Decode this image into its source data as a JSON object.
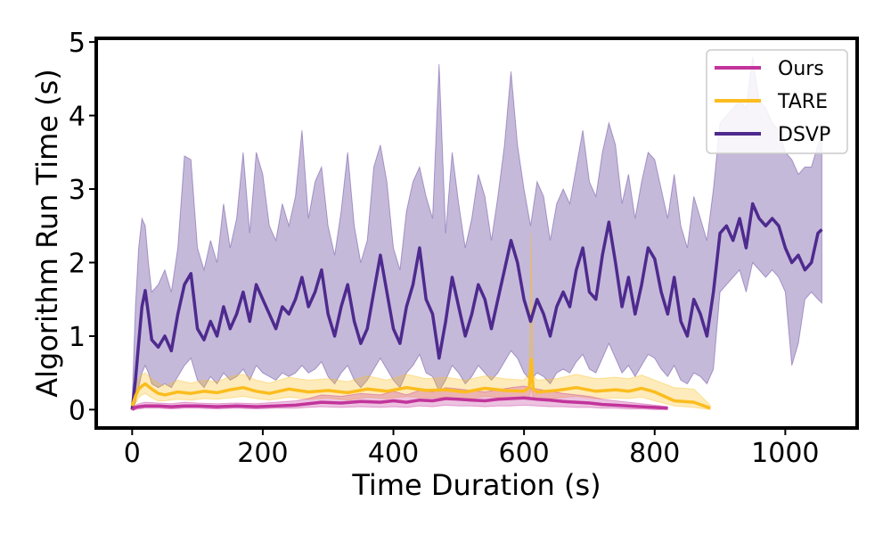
{
  "chart_data": {
    "type": "line",
    "xlabel": "Time Duration (s)",
    "ylabel": "Algorithm Run Time (s)",
    "xlim": [
      -55,
      1110
    ],
    "ylim": [
      -0.25,
      5.05
    ],
    "xticks": [
      0,
      200,
      400,
      600,
      800,
      1000
    ],
    "yticks": [
      0,
      1,
      2,
      3,
      4,
      5
    ],
    "legend_position": "top-right",
    "series": [
      {
        "name": "Ours",
        "color": "#c2349b",
        "x": [
          0,
          5,
          10,
          20,
          40,
          60,
          80,
          100,
          130,
          160,
          190,
          220,
          250,
          270,
          290,
          320,
          350,
          380,
          400,
          420,
          440,
          460,
          480,
          500,
          520,
          540,
          560,
          580,
          600,
          620,
          640,
          660,
          680,
          700,
          720,
          740,
          760,
          780,
          800,
          820
        ],
        "y": [
          0.0,
          0.03,
          0.04,
          0.05,
          0.05,
          0.04,
          0.05,
          0.05,
          0.04,
          0.05,
          0.04,
          0.05,
          0.06,
          0.08,
          0.1,
          0.09,
          0.11,
          0.1,
          0.12,
          0.1,
          0.13,
          0.12,
          0.15,
          0.14,
          0.13,
          0.12,
          0.14,
          0.15,
          0.16,
          0.14,
          0.13,
          0.11,
          0.1,
          0.09,
          0.07,
          0.06,
          0.05,
          0.04,
          0.03,
          0.02
        ],
        "lower": [
          0.0,
          0.0,
          0.01,
          0.02,
          0.02,
          0.01,
          0.02,
          0.02,
          0.01,
          0.02,
          0.01,
          0.02,
          0.02,
          0.03,
          0.04,
          0.03,
          0.04,
          0.03,
          0.04,
          0.03,
          0.05,
          0.04,
          0.06,
          0.05,
          0.05,
          0.04,
          0.05,
          0.05,
          0.06,
          0.05,
          0.04,
          0.04,
          0.03,
          0.03,
          0.02,
          0.02,
          0.01,
          0.01,
          0.0,
          0.0
        ],
        "upper": [
          0.02,
          0.06,
          0.08,
          0.1,
          0.09,
          0.08,
          0.1,
          0.09,
          0.08,
          0.09,
          0.08,
          0.1,
          0.12,
          0.15,
          0.2,
          0.18,
          0.22,
          0.2,
          0.25,
          0.2,
          0.26,
          0.24,
          0.3,
          0.28,
          0.26,
          0.24,
          0.27,
          0.3,
          0.32,
          0.28,
          0.25,
          0.22,
          0.2,
          0.18,
          0.14,
          0.12,
          0.1,
          0.08,
          0.06,
          0.04
        ]
      },
      {
        "name": "TARE",
        "color": "#fbbd1e",
        "x": [
          0,
          5,
          10,
          15,
          20,
          30,
          40,
          50,
          70,
          90,
          110,
          130,
          150,
          170,
          190,
          210,
          240,
          270,
          300,
          330,
          360,
          390,
          420,
          450,
          480,
          510,
          540,
          570,
          600,
          608,
          611,
          614,
          620,
          650,
          680,
          710,
          740,
          760,
          780,
          800,
          830,
          860,
          885
        ],
        "y": [
          0.05,
          0.18,
          0.28,
          0.32,
          0.35,
          0.28,
          0.22,
          0.2,
          0.24,
          0.22,
          0.25,
          0.23,
          0.27,
          0.3,
          0.25,
          0.22,
          0.28,
          0.24,
          0.26,
          0.23,
          0.28,
          0.25,
          0.3,
          0.26,
          0.27,
          0.24,
          0.29,
          0.26,
          0.25,
          0.3,
          0.68,
          0.28,
          0.24,
          0.26,
          0.3,
          0.25,
          0.27,
          0.25,
          0.29,
          0.24,
          0.12,
          0.1,
          0.02
        ],
        "lower": [
          0.0,
          0.08,
          0.16,
          0.2,
          0.22,
          0.16,
          0.12,
          0.12,
          0.14,
          0.13,
          0.15,
          0.14,
          0.16,
          0.18,
          0.15,
          0.13,
          0.17,
          0.14,
          0.16,
          0.13,
          0.17,
          0.15,
          0.18,
          0.16,
          0.17,
          0.14,
          0.18,
          0.16,
          0.15,
          0.18,
          0.3,
          0.17,
          0.14,
          0.16,
          0.18,
          0.15,
          0.16,
          0.15,
          0.17,
          0.12,
          0.05,
          0.03,
          0.0
        ],
        "upper": [
          0.1,
          0.3,
          0.42,
          0.48,
          0.5,
          0.42,
          0.36,
          0.32,
          0.4,
          0.36,
          0.4,
          0.38,
          0.45,
          0.48,
          0.4,
          0.36,
          0.44,
          0.4,
          0.42,
          0.38,
          0.46,
          0.4,
          0.48,
          0.42,
          0.44,
          0.4,
          0.46,
          0.42,
          0.4,
          0.5,
          2.4,
          0.46,
          0.4,
          0.42,
          0.48,
          0.42,
          0.44,
          0.42,
          0.47,
          0.4,
          0.3,
          0.28,
          0.06
        ]
      },
      {
        "name": "DSVP",
        "color": "#4e2a8e",
        "x": [
          0,
          5,
          10,
          15,
          20,
          25,
          30,
          40,
          50,
          60,
          70,
          80,
          90,
          100,
          110,
          120,
          130,
          140,
          150,
          160,
          170,
          180,
          190,
          200,
          210,
          220,
          230,
          240,
          250,
          260,
          270,
          280,
          290,
          300,
          310,
          320,
          330,
          340,
          350,
          360,
          370,
          380,
          390,
          400,
          410,
          420,
          430,
          440,
          450,
          460,
          470,
          480,
          490,
          500,
          510,
          520,
          530,
          540,
          550,
          560,
          570,
          580,
          590,
          600,
          610,
          620,
          630,
          640,
          650,
          660,
          670,
          680,
          690,
          700,
          710,
          720,
          730,
          740,
          750,
          760,
          770,
          780,
          790,
          800,
          810,
          820,
          830,
          840,
          850,
          860,
          870,
          880,
          890,
          900,
          910,
          920,
          930,
          940,
          950,
          960,
          970,
          980,
          990,
          1000,
          1010,
          1020,
          1030,
          1040,
          1050,
          1056
        ],
        "y": [
          0.0,
          0.4,
          0.9,
          1.4,
          1.62,
          1.3,
          0.95,
          0.85,
          1.0,
          0.8,
          1.3,
          1.7,
          1.85,
          1.1,
          0.95,
          1.2,
          1.0,
          1.4,
          1.1,
          1.3,
          1.6,
          1.2,
          1.7,
          1.5,
          1.3,
          1.1,
          1.4,
          1.3,
          1.5,
          1.8,
          1.4,
          1.6,
          1.9,
          1.3,
          1.0,
          1.4,
          1.7,
          1.2,
          0.9,
          1.1,
          1.6,
          2.1,
          1.6,
          1.1,
          0.9,
          1.4,
          1.7,
          2.2,
          1.5,
          1.3,
          0.7,
          1.2,
          1.8,
          1.4,
          1.0,
          1.3,
          1.7,
          1.5,
          1.1,
          1.5,
          1.9,
          2.3,
          2.0,
          1.5,
          1.2,
          1.5,
          1.3,
          1.0,
          1.4,
          1.6,
          1.4,
          1.9,
          2.2,
          1.6,
          1.5,
          2.1,
          2.55,
          2.0,
          1.4,
          1.8,
          1.3,
          1.7,
          2.2,
          2.05,
          1.6,
          1.3,
          1.8,
          1.2,
          1.0,
          1.5,
          1.3,
          1.0,
          1.6,
          2.4,
          2.5,
          2.3,
          2.6,
          2.2,
          2.8,
          2.6,
          2.5,
          2.6,
          2.5,
          2.2,
          2.0,
          2.1,
          1.9,
          2.0,
          2.4,
          2.45
        ],
        "lower": [
          0.0,
          0.1,
          0.3,
          0.5,
          0.6,
          0.5,
          0.35,
          0.3,
          0.35,
          0.3,
          0.45,
          0.6,
          0.7,
          0.4,
          0.3,
          0.45,
          0.35,
          0.5,
          0.4,
          0.45,
          0.55,
          0.4,
          0.6,
          0.5,
          0.45,
          0.4,
          0.5,
          0.45,
          0.5,
          0.6,
          0.5,
          0.55,
          0.65,
          0.45,
          0.35,
          0.5,
          0.6,
          0.4,
          0.3,
          0.4,
          0.55,
          0.7,
          0.55,
          0.4,
          0.3,
          0.5,
          0.6,
          0.75,
          0.5,
          0.45,
          0.25,
          0.4,
          0.6,
          0.5,
          0.35,
          0.45,
          0.6,
          0.5,
          0.4,
          0.5,
          0.65,
          0.8,
          0.7,
          0.5,
          0.4,
          0.5,
          0.45,
          0.35,
          0.5,
          0.55,
          0.5,
          0.65,
          0.75,
          0.55,
          0.5,
          0.7,
          0.9,
          0.7,
          0.5,
          0.6,
          0.45,
          0.6,
          0.75,
          0.7,
          0.55,
          0.45,
          0.6,
          0.4,
          0.35,
          0.5,
          0.45,
          0.35,
          0.55,
          1.6,
          1.7,
          1.8,
          1.9,
          1.6,
          2.0,
          1.9,
          1.8,
          1.9,
          1.8,
          1.6,
          0.6,
          0.9,
          1.5,
          1.6,
          1.5,
          1.45
        ],
        "upper": [
          0.1,
          1.4,
          2.2,
          2.6,
          2.5,
          2.0,
          1.6,
          1.7,
          1.9,
          1.6,
          2.2,
          3.45,
          3.4,
          2.2,
          1.9,
          2.3,
          2.0,
          2.8,
          2.2,
          2.6,
          3.5,
          2.4,
          3.5,
          3.2,
          2.5,
          2.3,
          2.8,
          2.5,
          2.9,
          3.8,
          2.6,
          3.1,
          3.3,
          2.5,
          2.1,
          2.7,
          3.5,
          2.5,
          2.0,
          2.3,
          3.3,
          3.6,
          3.1,
          2.2,
          1.9,
          2.7,
          3.1,
          3.3,
          2.9,
          2.6,
          4.7,
          2.4,
          3.5,
          2.8,
          2.2,
          2.6,
          3.2,
          2.9,
          2.3,
          2.9,
          3.6,
          4.6,
          3.6,
          3.0,
          2.5,
          3.1,
          2.9,
          2.3,
          2.8,
          3.0,
          2.8,
          3.3,
          3.8,
          3.1,
          2.9,
          3.5,
          3.9,
          3.6,
          2.8,
          3.2,
          2.6,
          3.1,
          3.5,
          3.4,
          3.0,
          2.6,
          3.2,
          2.5,
          2.2,
          2.9,
          2.6,
          2.3,
          3.0,
          3.9,
          4.0,
          4.1,
          4.2,
          4.1,
          4.8,
          4.2,
          4.1,
          3.9,
          3.8,
          3.5,
          3.4,
          3.2,
          3.3,
          3.3,
          3.6,
          3.7
        ]
      }
    ]
  }
}
